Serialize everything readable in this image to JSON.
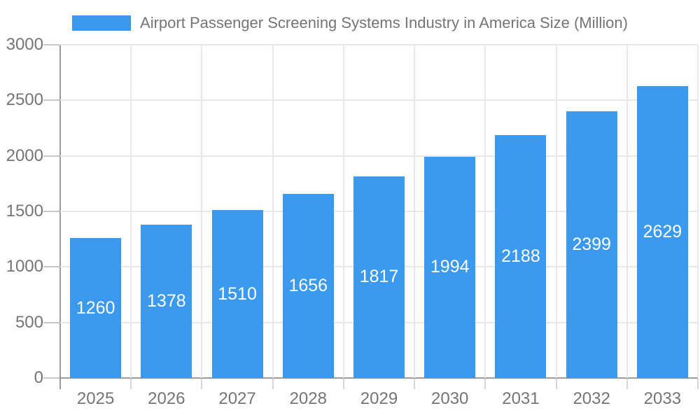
{
  "chart_data": {
    "type": "bar",
    "title": "Airport Passenger Screening Systems Industry in America Size (Million)",
    "legend_position": "top",
    "categories": [
      "2025",
      "2026",
      "2027",
      "2028",
      "2029",
      "2030",
      "2031",
      "2032",
      "2033"
    ],
    "series": [
      {
        "name": "Airport Passenger Screening Systems Industry in America Size (Million)",
        "values": [
          1260,
          1378,
          1510,
          1656,
          1817,
          1994,
          2188,
          2399,
          2629
        ],
        "color": "#3B99EE"
      }
    ],
    "xlabel": "",
    "ylabel": "",
    "ylim": [
      0,
      3000
    ],
    "yticks": [
      0,
      500,
      1000,
      1500,
      2000,
      2500,
      3000
    ],
    "grid": true,
    "bar_labels_shown": true,
    "style": {
      "bar_color": "#3B99EE",
      "bar_label_color": "#FFFFFF",
      "grid_color": "#E8E8E8",
      "axis_color": "#9A9A9A",
      "text_color": "#757575",
      "background": "#FFFFFF"
    }
  }
}
